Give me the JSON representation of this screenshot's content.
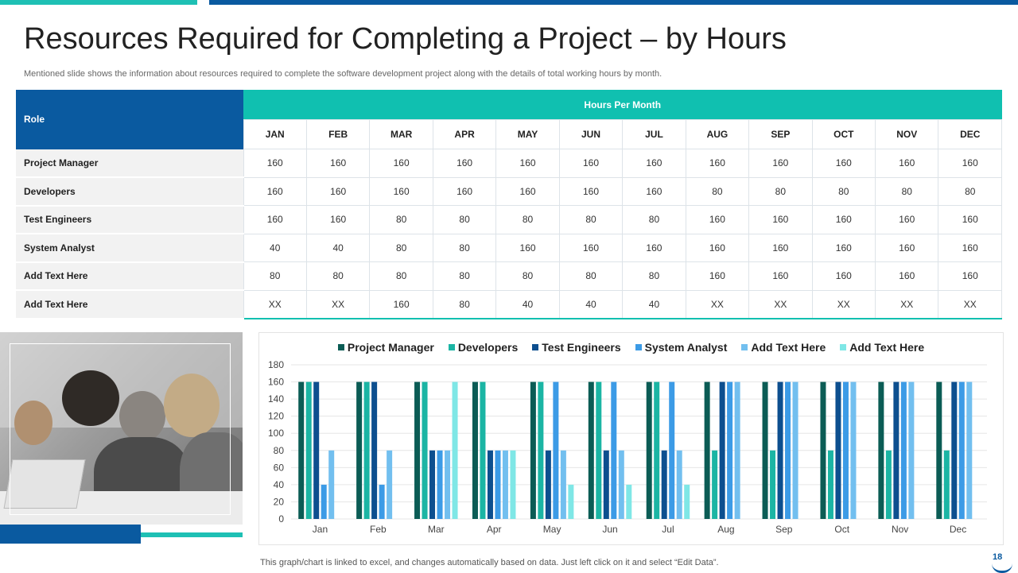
{
  "title": "Resources Required for Completing a Project – by Hours",
  "subtitle": "Mentioned slide shows the information about resources required to complete the software development project along with the details of total working hours by month.",
  "table": {
    "role_header": "Role",
    "hours_header": "Hours Per Month",
    "months": [
      "JAN",
      "FEB",
      "MAR",
      "APR",
      "MAY",
      "JUN",
      "JUL",
      "AUG",
      "SEP",
      "OCT",
      "NOV",
      "DEC"
    ],
    "rows": [
      {
        "label": "Project Manager",
        "values": [
          "160",
          "160",
          "160",
          "160",
          "160",
          "160",
          "160",
          "160",
          "160",
          "160",
          "160",
          "160"
        ]
      },
      {
        "label": "Developers",
        "values": [
          "160",
          "160",
          "160",
          "160",
          "160",
          "160",
          "160",
          "80",
          "80",
          "80",
          "80",
          "80"
        ]
      },
      {
        "label": "Test Engineers",
        "values": [
          "160",
          "160",
          "80",
          "80",
          "80",
          "80",
          "80",
          "160",
          "160",
          "160",
          "160",
          "160"
        ]
      },
      {
        "label": "System Analyst",
        "values": [
          "40",
          "40",
          "80",
          "80",
          "160",
          "160",
          "160",
          "160",
          "160",
          "160",
          "160",
          "160"
        ]
      },
      {
        "label": "Add Text Here",
        "values": [
          "80",
          "80",
          "80",
          "80",
          "80",
          "80",
          "80",
          "160",
          "160",
          "160",
          "160",
          "160"
        ]
      },
      {
        "label": "Add Text Here",
        "values": [
          "XX",
          "XX",
          "160",
          "80",
          "40",
          "40",
          "40",
          "XX",
          "XX",
          "XX",
          "XX",
          "XX"
        ]
      }
    ]
  },
  "chart_data": {
    "type": "bar",
    "categories": [
      "Jan",
      "Feb",
      "Mar",
      "Apr",
      "May",
      "Jun",
      "Jul",
      "Aug",
      "Sep",
      "Oct",
      "Nov",
      "Dec"
    ],
    "series": [
      {
        "name": "Project Manager",
        "color": "#0b5c55",
        "values": [
          160,
          160,
          160,
          160,
          160,
          160,
          160,
          160,
          160,
          160,
          160,
          160
        ]
      },
      {
        "name": "Developers",
        "color": "#1bb5a4",
        "values": [
          160,
          160,
          160,
          160,
          160,
          160,
          160,
          80,
          80,
          80,
          80,
          80
        ]
      },
      {
        "name": "Test Engineers",
        "color": "#0d4f8f",
        "values": [
          160,
          160,
          80,
          80,
          80,
          80,
          80,
          160,
          160,
          160,
          160,
          160
        ]
      },
      {
        "name": "System Analyst",
        "color": "#3c9be6",
        "values": [
          40,
          40,
          80,
          80,
          160,
          160,
          160,
          160,
          160,
          160,
          160,
          160
        ]
      },
      {
        "name": "Add Text Here",
        "color": "#72bfef",
        "values": [
          80,
          80,
          80,
          80,
          80,
          80,
          80,
          160,
          160,
          160,
          160,
          160
        ]
      },
      {
        "name": "Add Text Here",
        "color": "#7fe7e6",
        "values": [
          0,
          0,
          160,
          80,
          40,
          40,
          40,
          0,
          0,
          0,
          0,
          0
        ]
      }
    ],
    "ylim": [
      0,
      180
    ],
    "yticks": [
      0,
      20,
      40,
      60,
      80,
      100,
      120,
      140,
      160,
      180
    ],
    "legend_position": "top",
    "grid": true
  },
  "footnote": "This graph/chart is linked to excel, and changes automatically based on data. Just left click on it and select “Edit Data”.",
  "page_number": "18"
}
